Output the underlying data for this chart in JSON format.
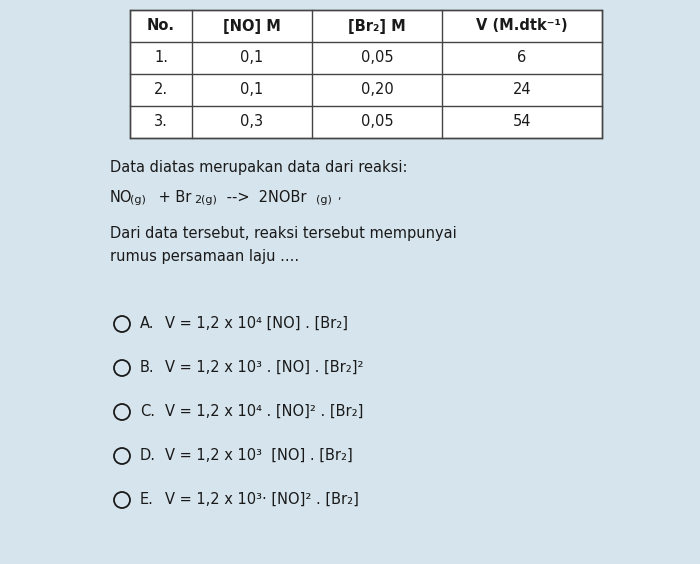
{
  "bg_color": "#d6e4ed",
  "table_header": [
    "No.",
    "[NO] M",
    "[Br₂] M",
    "V (M.dtk⁻¹)"
  ],
  "table_rows": [
    [
      "1.",
      "0,1",
      "0,05",
      "6"
    ],
    [
      "2.",
      "0,1",
      "0,20",
      "24"
    ],
    [
      "3.",
      "0,3",
      "0,05",
      "54"
    ]
  ],
  "text_intro": "Data diatas merupakan data dari reaksi:",
  "text_question": "Dari data tersebut, reaksi tersebut mempunyai\nrumus persamaan laju ....",
  "options": [
    [
      "A.",
      "V = 1,2 x 10⁴ [NO] . [Br₂]"
    ],
    [
      "B.",
      "V = 1,2 x 10³ . [NO] . [Br₂]²"
    ],
    [
      "C.",
      "V = 1,2 x 10⁴ . [NO]² . [Br₂]"
    ],
    [
      "D.",
      "V = 1,2 x 10³  [NO] . [Br₂]"
    ],
    [
      "E.",
      "V = 1,2 x 10³· [NO]² . [Br₂]"
    ]
  ],
  "font_size_table": 10.5,
  "font_size_text": 10.5,
  "font_size_options": 10.5,
  "text_color": "#1a1a1a",
  "table_line_color": "#444444",
  "table_bg": "#f5f5f5"
}
